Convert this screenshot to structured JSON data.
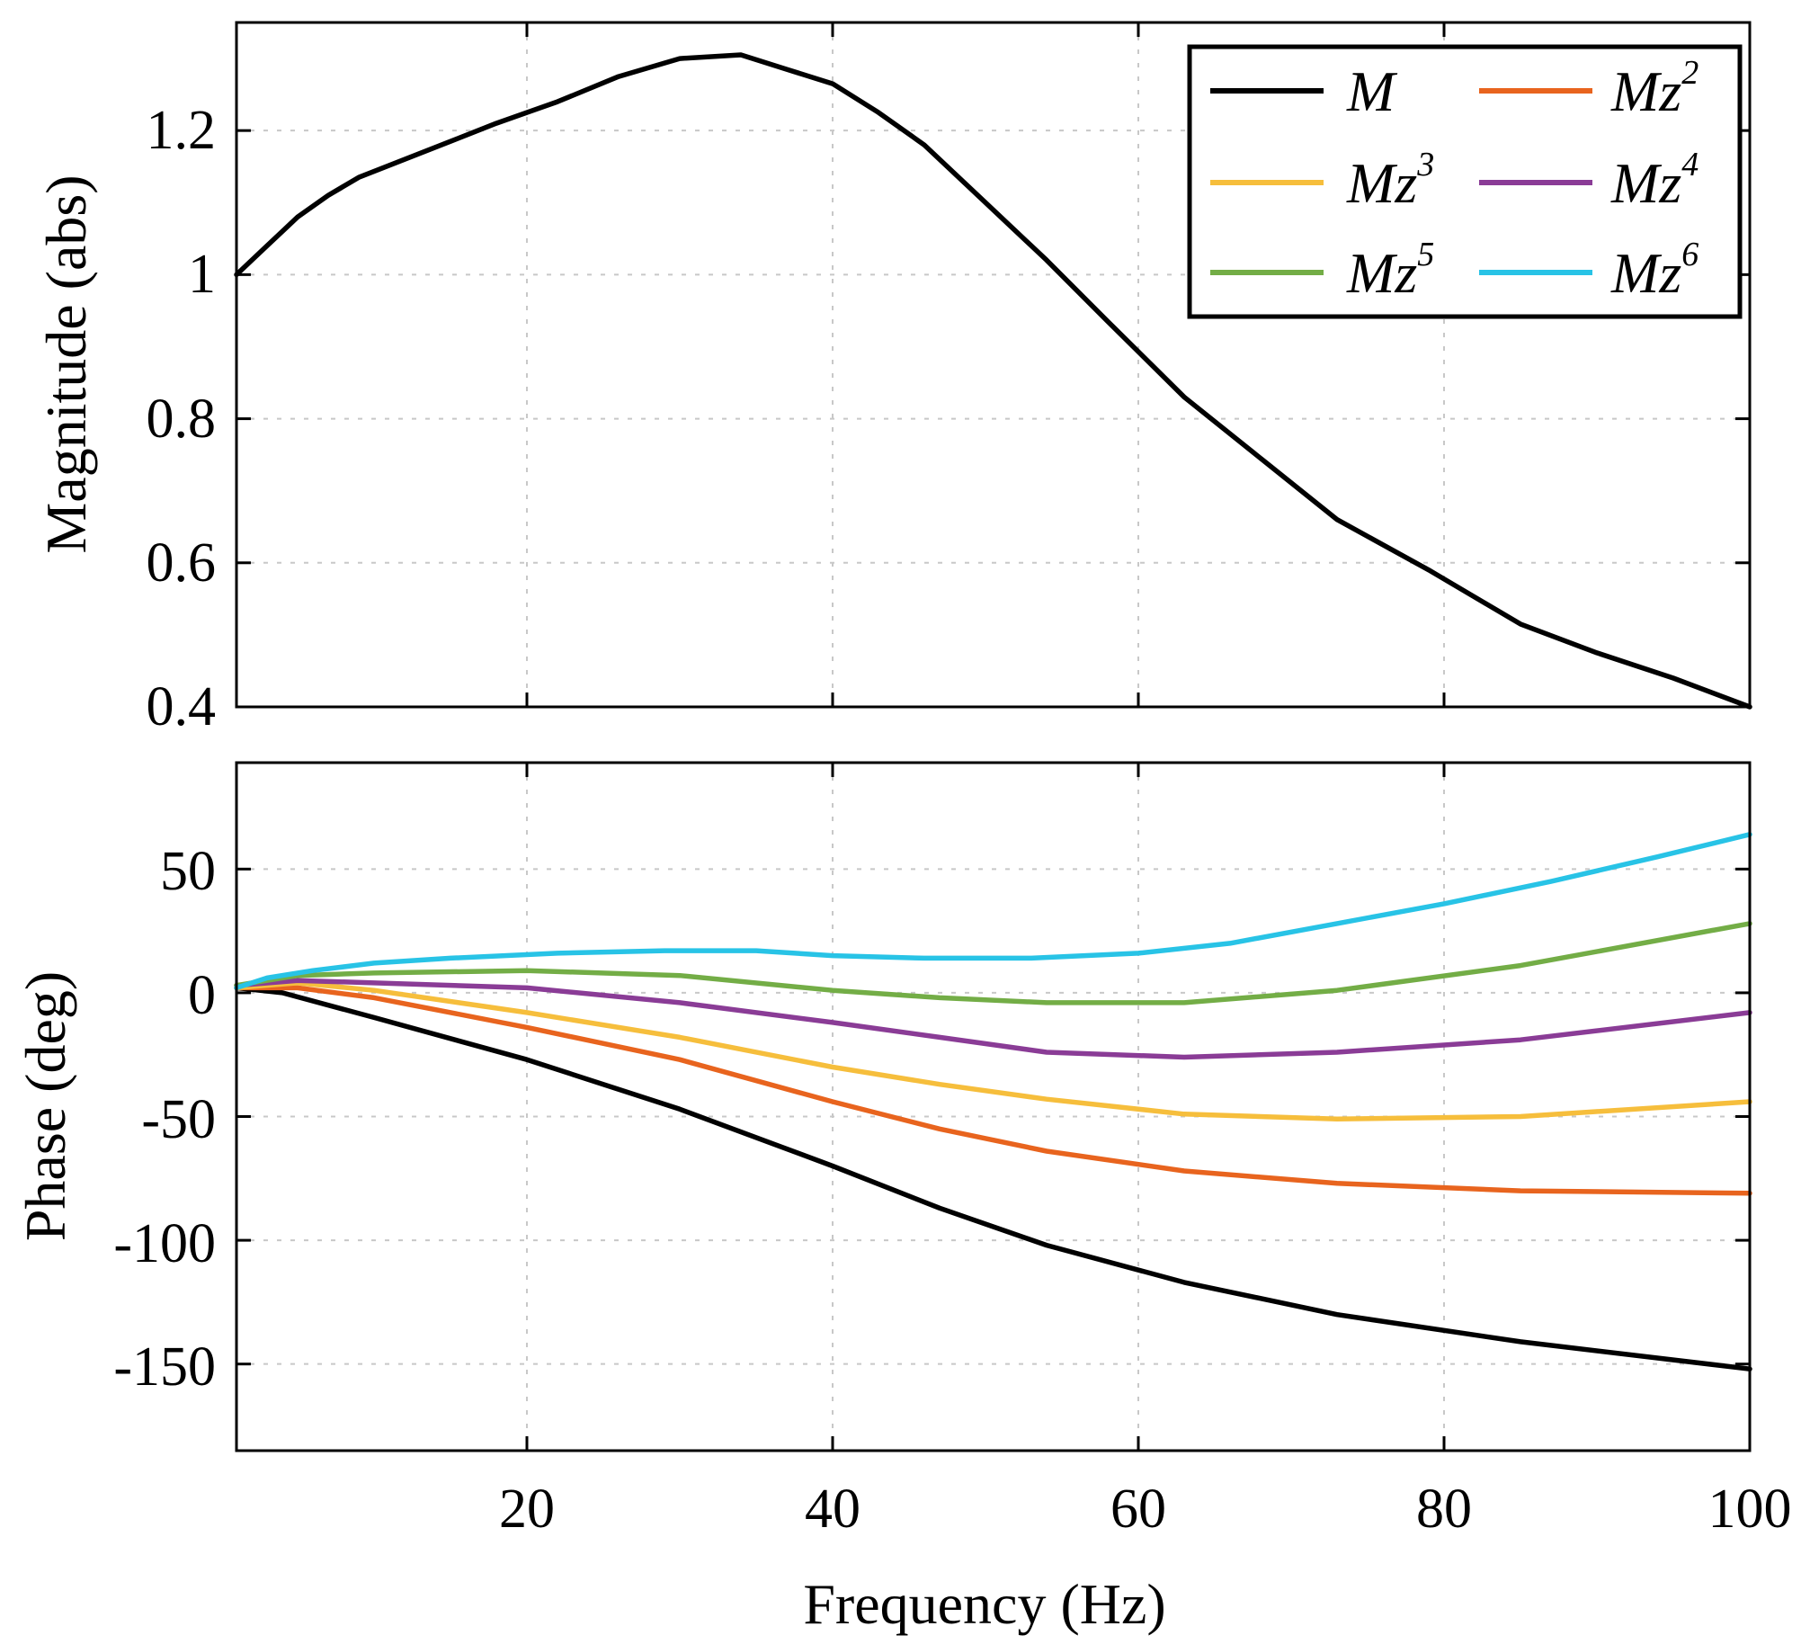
{
  "chart_data": [
    {
      "type": "line",
      "title": "",
      "xlabel": "",
      "ylabel": "Magnitude (abs)",
      "xlim": [
        1,
        100
      ],
      "ylim": [
        0.4,
        1.35
      ],
      "xticks": [
        20,
        40,
        60,
        80,
        100
      ],
      "yticks": [
        0.4,
        0.6,
        0.8,
        1,
        1.2
      ],
      "ytick_labels": [
        "0.4",
        "0.6",
        "0.8",
        "1",
        "1.2"
      ],
      "grid": true,
      "legend_position": "top-right",
      "legend": [
        {
          "name": "M",
          "sup": "",
          "color": "#000000"
        },
        {
          "name": "Mz",
          "sup": "2",
          "color": "#e8641e"
        },
        {
          "name": "Mz",
          "sup": "3",
          "color": "#f6be3c"
        },
        {
          "name": "Mz",
          "sup": "4",
          "color": "#8a3c96"
        },
        {
          "name": "Mz",
          "sup": "5",
          "color": "#73ad46"
        },
        {
          "name": "Mz",
          "sup": "6",
          "color": "#28c3e6"
        }
      ],
      "series": [
        {
          "name": "M",
          "color": "#000000",
          "x": [
            1,
            3,
            5,
            7,
            9,
            12,
            15,
            18,
            22,
            26,
            30,
            34,
            37,
            40,
            43,
            46,
            50,
            54,
            58,
            63,
            68,
            73,
            79,
            85,
            90,
            95,
            100
          ],
          "y": [
            1.0,
            1.04,
            1.08,
            1.11,
            1.135,
            1.16,
            1.185,
            1.21,
            1.24,
            1.275,
            1.3,
            1.305,
            1.285,
            1.265,
            1.225,
            1.18,
            1.1,
            1.02,
            0.935,
            0.83,
            0.745,
            0.66,
            0.59,
            0.515,
            0.475,
            0.44,
            0.4
          ]
        }
      ]
    },
    {
      "type": "line",
      "title": "",
      "xlabel": "Frequency (Hz)",
      "ylabel": "Phase (deg)",
      "xlim": [
        1,
        100
      ],
      "ylim": [
        -185,
        93
      ],
      "xticks": [
        20,
        40,
        60,
        80,
        100
      ],
      "yticks": [
        -150,
        -100,
        -50,
        0,
        50
      ],
      "ytick_labels": [
        "-150",
        "-100",
        "-50",
        "0",
        "50"
      ],
      "grid": true,
      "series": [
        {
          "name": "M",
          "color": "#000000",
          "x": [
            1,
            4,
            10,
            20,
            30,
            40,
            47,
            54,
            63,
            73,
            85,
            100
          ],
          "y": [
            2,
            0,
            -10,
            -27,
            -47,
            -70,
            -87,
            -102,
            -117,
            -130,
            -141,
            -152
          ]
        },
        {
          "name": "Mz2",
          "color": "#e8641e",
          "x": [
            1,
            5,
            10,
            20,
            30,
            40,
            47,
            54,
            63,
            73,
            85,
            100
          ],
          "y": [
            2,
            2,
            -2,
            -14,
            -27,
            -44,
            -55,
            -64,
            -72,
            -77,
            -80,
            -81
          ]
        },
        {
          "name": "Mz3",
          "color": "#f6be3c",
          "x": [
            1,
            5,
            10,
            20,
            30,
            40,
            47,
            54,
            63,
            73,
            85,
            100
          ],
          "y": [
            2,
            4,
            1,
            -8,
            -18,
            -30,
            -37,
            -43,
            -49,
            -51,
            -50,
            -44
          ]
        },
        {
          "name": "Mz4",
          "color": "#8a3c96",
          "x": [
            1,
            5,
            10,
            20,
            30,
            40,
            47,
            54,
            63,
            73,
            85,
            100
          ],
          "y": [
            3,
            5,
            4,
            2,
            -4,
            -12,
            -18,
            -24,
            -26,
            -24,
            -19,
            -8
          ]
        },
        {
          "name": "Mz5",
          "color": "#73ad46",
          "x": [
            1,
            5,
            10,
            20,
            30,
            40,
            47,
            54,
            63,
            73,
            85,
            100
          ],
          "y": [
            3,
            7,
            8,
            9,
            7,
            1,
            -2,
            -4,
            -4,
            1,
            11,
            28
          ]
        },
        {
          "name": "Mz6",
          "color": "#28c3e6",
          "x": [
            1,
            3,
            6,
            10,
            15,
            22,
            29,
            35,
            40,
            46,
            53,
            60,
            66,
            73,
            80,
            87,
            94,
            100
          ],
          "y": [
            2,
            6,
            9,
            12,
            14,
            16,
            17,
            17,
            15,
            14,
            14,
            16,
            20,
            28,
            36,
            45,
            55,
            64
          ]
        }
      ]
    }
  ]
}
